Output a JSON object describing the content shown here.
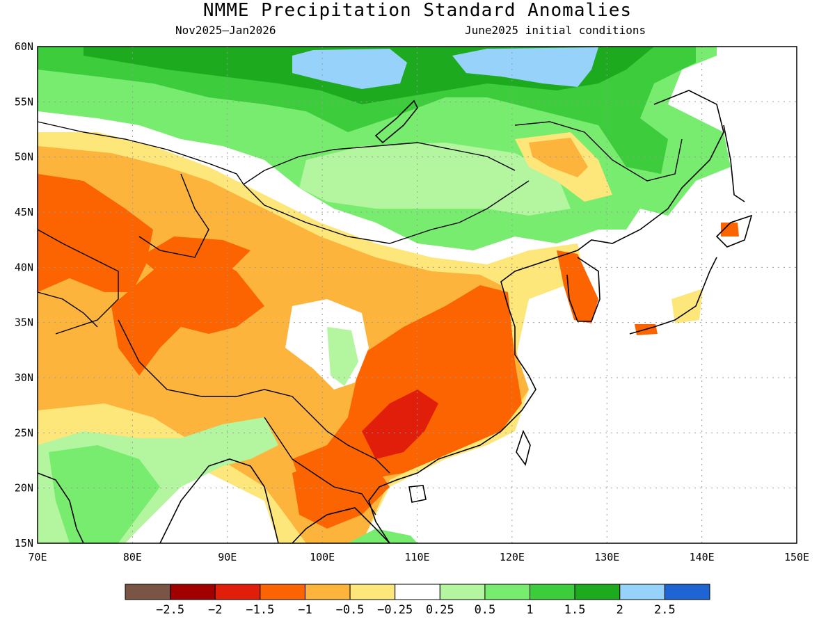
{
  "header": {
    "title": "NMME Precipitation Standard Anomalies",
    "period": "Nov2025–Jan2026",
    "init": "June2025 initial conditions"
  },
  "axes": {
    "lat_labels": [
      "15N",
      "20N",
      "25N",
      "30N",
      "35N",
      "40N",
      "45N",
      "50N",
      "55N",
      "60N"
    ],
    "lon_labels": [
      "70E",
      "80E",
      "90E",
      "100E",
      "110E",
      "120E",
      "130E",
      "140E",
      "150E"
    ],
    "lon_range": [
      70,
      150
    ],
    "lat_range": [
      15,
      60
    ]
  },
  "colorbar": {
    "colors": [
      "#7a5546",
      "#a00000",
      "#e01e0a",
      "#fb6400",
      "#fcb43c",
      "#fde67a",
      "#ffffff",
      "#b4f5a0",
      "#78ec6e",
      "#3ccc3c",
      "#1eaa1e",
      "#96d2fa",
      "#1e64d2"
    ],
    "labels": [
      "−2.5",
      "−2",
      "−1.5",
      "−1",
      "−0.5",
      "−0.25",
      "0.25",
      "0.5",
      "1",
      "1.5",
      "2",
      "2.5"
    ]
  },
  "palette": {
    "deep_red": "#e01e0a",
    "orange": "#fb6400",
    "light_orange": "#fcb43c",
    "yellow": "#fde67a",
    "white": "#ffffff",
    "pale_green": "#b4f5a0",
    "green": "#78ec6e",
    "mid_green": "#3ccc3c",
    "dark_green": "#1eaa1e",
    "light_blue": "#96d2fa"
  },
  "map": {
    "frame": "#000000",
    "grid": "#9a9a9a",
    "coast": "#000000"
  }
}
